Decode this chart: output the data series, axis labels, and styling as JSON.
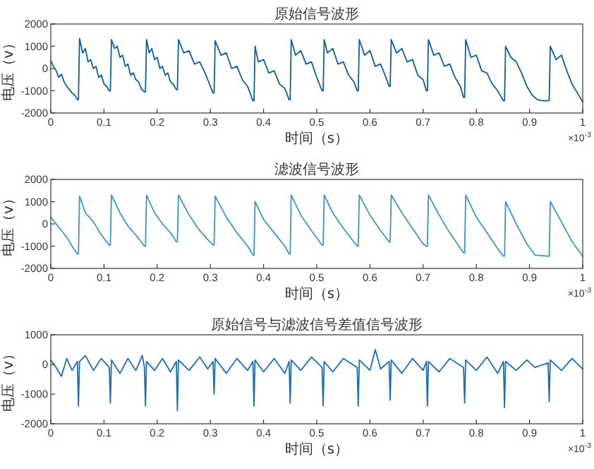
{
  "chart_data": [
    {
      "type": "line",
      "title": "原始信号波形",
      "xlabel": "时间（s）",
      "ylabel": "电压（v）",
      "annotations": [
        "×10$^{-3}$"
      ],
      "xlim": [
        0,
        1
      ],
      "xticks": [
        0,
        0.1,
        0.2,
        0.3,
        0.4,
        0.5,
        0.6,
        0.7,
        0.8,
        0.9,
        1
      ],
      "ylim": [
        -2000,
        2000
      ],
      "yticks": [
        -2000,
        -1000,
        0,
        1000,
        2000
      ],
      "grid": false,
      "series": [
        {
          "color": "#0e5f9e",
          "x": [
            0,
            0.005,
            0.01,
            0.015,
            0.02,
            0.025,
            0.03,
            0.035,
            0.04,
            0.045,
            0.05,
            0.052,
            0.054,
            0.06,
            0.065,
            0.07,
            0.075,
            0.08,
            0.085,
            0.09,
            0.095,
            0.1,
            0.105,
            0.11,
            0.112,
            0.114,
            0.12,
            0.125,
            0.13,
            0.135,
            0.14,
            0.145,
            0.15,
            0.155,
            0.16,
            0.165,
            0.17,
            0.176,
            0.178,
            0.18,
            0.185,
            0.19,
            0.195,
            0.2,
            0.205,
            0.21,
            0.215,
            0.22,
            0.225,
            0.23,
            0.236,
            0.238,
            0.24,
            0.25,
            0.26,
            0.27,
            0.28,
            0.29,
            0.295,
            0.305,
            0.307,
            0.309,
            0.32,
            0.33,
            0.34,
            0.35,
            0.36,
            0.37,
            0.38,
            0.382,
            0.384,
            0.39,
            0.4,
            0.41,
            0.42,
            0.43,
            0.44,
            0.448,
            0.45,
            0.452,
            0.46,
            0.47,
            0.48,
            0.49,
            0.5,
            0.51,
            0.512,
            0.514,
            0.52,
            0.53,
            0.54,
            0.55,
            0.56,
            0.57,
            0.576,
            0.578,
            0.58,
            0.59,
            0.6,
            0.61,
            0.62,
            0.63,
            0.636,
            0.638,
            0.64,
            0.65,
            0.66,
            0.67,
            0.68,
            0.69,
            0.7,
            0.706,
            0.708,
            0.71,
            0.72,
            0.73,
            0.74,
            0.75,
            0.76,
            0.77,
            0.776,
            0.778,
            0.78,
            0.79,
            0.8,
            0.81,
            0.82,
            0.83,
            0.84,
            0.851,
            0.853,
            0.855,
            0.865,
            0.875,
            0.885,
            0.895,
            0.905,
            0.915,
            0.925,
            0.935,
            0.937,
            0.939,
            0.95,
            0.96,
            0.97,
            0.98,
            0.99,
            1
          ],
          "values": [
            350,
            100,
            -100,
            -400,
            -250,
            -600,
            -800,
            -950,
            -1100,
            -1200,
            -1400,
            -1400,
            1350,
            700,
            900,
            300,
            400,
            0,
            100,
            -400,
            -300,
            -700,
            -800,
            -1000,
            -1000,
            1300,
            900,
            1000,
            500,
            600,
            100,
            200,
            -300,
            -200,
            -500,
            -600,
            -900,
            -1050,
            -1050,
            1300,
            700,
            900,
            400,
            500,
            0,
            100,
            -300,
            -200,
            -600,
            -700,
            -950,
            -950,
            1300,
            700,
            800,
            200,
            300,
            -200,
            -500,
            -1100,
            -1100,
            1250,
            600,
            700,
            0,
            100,
            -500,
            -800,
            -1450,
            -1450,
            1000,
            300,
            400,
            -200,
            -100,
            -700,
            -900,
            -1400,
            -1400,
            1300,
            600,
            800,
            200,
            300,
            -400,
            -1000,
            -1000,
            1300,
            700,
            900,
            200,
            300,
            -300,
            -600,
            -1000,
            -1000,
            1300,
            600,
            800,
            100,
            200,
            -400,
            -800,
            -800,
            1300,
            700,
            900,
            300,
            400,
            -300,
            -500,
            -1000,
            -1000,
            1300,
            600,
            700,
            100,
            200,
            -400,
            -800,
            -1300,
            -1300,
            1300,
            500,
            600,
            -100,
            -200,
            -700,
            -1000,
            -1450,
            -1450,
            1000,
            500,
            300,
            -200,
            -800,
            -1200,
            -1400,
            -1450,
            -1450,
            -1450,
            1000,
            400,
            600,
            -100,
            -700,
            -1100,
            -1500
          ]
        }
      ]
    },
    {
      "type": "line",
      "title": "滤波信号波形",
      "xlabel": "时间（s）",
      "ylabel": "电压（v）",
      "annotations": [
        "×10$^{-3}$"
      ],
      "xlim": [
        0,
        1
      ],
      "xticks": [
        0,
        0.1,
        0.2,
        0.3,
        0.4,
        0.5,
        0.6,
        0.7,
        0.8,
        0.9,
        1
      ],
      "ylim": [
        -2000,
        2000
      ],
      "yticks": [
        -2000,
        -1000,
        0,
        1000,
        2000
      ],
      "grid": false,
      "series": [
        {
          "color": "#3b95ca",
          "x": [
            0,
            0.01,
            0.02,
            0.03,
            0.04,
            0.05,
            0.052,
            0.054,
            0.065,
            0.08,
            0.095,
            0.11,
            0.112,
            0.114,
            0.13,
            0.145,
            0.16,
            0.176,
            0.178,
            0.18,
            0.195,
            0.21,
            0.225,
            0.236,
            0.238,
            0.24,
            0.26,
            0.28,
            0.295,
            0.305,
            0.307,
            0.309,
            0.33,
            0.35,
            0.37,
            0.38,
            0.382,
            0.384,
            0.4,
            0.42,
            0.44,
            0.448,
            0.45,
            0.452,
            0.47,
            0.49,
            0.51,
            0.512,
            0.514,
            0.53,
            0.55,
            0.576,
            0.578,
            0.58,
            0.6,
            0.62,
            0.636,
            0.638,
            0.64,
            0.66,
            0.68,
            0.7,
            0.706,
            0.708,
            0.71,
            0.73,
            0.75,
            0.776,
            0.778,
            0.78,
            0.8,
            0.82,
            0.84,
            0.851,
            0.853,
            0.855,
            0.875,
            0.895,
            0.91,
            0.935,
            0.937,
            0.939,
            0.96,
            0.98,
            1
          ],
          "values": [
            300,
            0,
            -300,
            -600,
            -1000,
            -1350,
            -1350,
            1250,
            500,
            100,
            -500,
            -950,
            -950,
            1300,
            500,
            -100,
            -500,
            -1000,
            -1000,
            1300,
            500,
            0,
            -400,
            -800,
            -800,
            1300,
            400,
            -300,
            -700,
            -950,
            -950,
            1250,
            300,
            -400,
            -1000,
            -1400,
            -1400,
            1000,
            200,
            -400,
            -1000,
            -1350,
            -1350,
            1300,
            400,
            -300,
            -950,
            -950,
            1300,
            500,
            -200,
            -1000,
            -1000,
            1300,
            400,
            -300,
            -800,
            -800,
            1300,
            500,
            -200,
            -900,
            -1000,
            -1000,
            1300,
            400,
            -400,
            -1300,
            -1300,
            1300,
            300,
            -400,
            -1100,
            -1450,
            -1450,
            1000,
            0,
            -900,
            -1400,
            -1450,
            -1450,
            1000,
            100,
            -800,
            -1450
          ]
        }
      ]
    },
    {
      "type": "line",
      "title": "原始信号与滤波信号差值信号波形",
      "xlabel": "时间（s）",
      "ylabel": "电压（v）",
      "annotations": [
        "×10$^{-3}$"
      ],
      "xlim": [
        0,
        1
      ],
      "xticks": [
        0,
        0.1,
        0.2,
        0.3,
        0.4,
        0.5,
        0.6,
        0.7,
        0.8,
        0.9,
        1
      ],
      "ylim": [
        -2000,
        1000
      ],
      "yticks": [
        -2000,
        -1000,
        0,
        1000
      ],
      "grid": false,
      "series": [
        {
          "color": "#1a6fb0",
          "x": [
            0,
            0.01,
            0.02,
            0.03,
            0.04,
            0.05,
            0.052,
            0.054,
            0.065,
            0.08,
            0.095,
            0.11,
            0.112,
            0.114,
            0.13,
            0.145,
            0.16,
            0.172,
            0.176,
            0.178,
            0.18,
            0.195,
            0.21,
            0.225,
            0.236,
            0.238,
            0.24,
            0.26,
            0.28,
            0.295,
            0.305,
            0.307,
            0.309,
            0.33,
            0.35,
            0.37,
            0.38,
            0.382,
            0.384,
            0.4,
            0.42,
            0.44,
            0.448,
            0.45,
            0.452,
            0.47,
            0.49,
            0.51,
            0.512,
            0.514,
            0.53,
            0.55,
            0.576,
            0.578,
            0.58,
            0.6,
            0.61,
            0.62,
            0.636,
            0.638,
            0.64,
            0.66,
            0.68,
            0.7,
            0.706,
            0.708,
            0.71,
            0.73,
            0.75,
            0.776,
            0.778,
            0.78,
            0.8,
            0.82,
            0.84,
            0.851,
            0.853,
            0.855,
            0.875,
            0.895,
            0.91,
            0.935,
            0.937,
            0.939,
            0.96,
            0.98,
            1
          ],
          "values": [
            150,
            -100,
            -400,
            200,
            -200,
            100,
            -1400,
            100,
            300,
            -200,
            200,
            -100,
            -1300,
            150,
            -300,
            200,
            -200,
            300,
            -100,
            -1400,
            100,
            -200,
            200,
            -250,
            100,
            -1550,
            150,
            -200,
            250,
            -150,
            100,
            -1000,
            200,
            -300,
            200,
            -200,
            100,
            -1400,
            150,
            -250,
            200,
            -300,
            100,
            -1300,
            150,
            -200,
            250,
            -100,
            -1400,
            100,
            -250,
            200,
            -100,
            -1400,
            150,
            -200,
            500,
            -150,
            100,
            -1200,
            150,
            -300,
            200,
            -200,
            100,
            -1400,
            100,
            -250,
            200,
            -100,
            -1300,
            150,
            -200,
            250,
            -300,
            100,
            -1450,
            100,
            -200,
            150,
            -100,
            50,
            -1250,
            150,
            -200,
            200,
            -150
          ]
        }
      ]
    }
  ]
}
